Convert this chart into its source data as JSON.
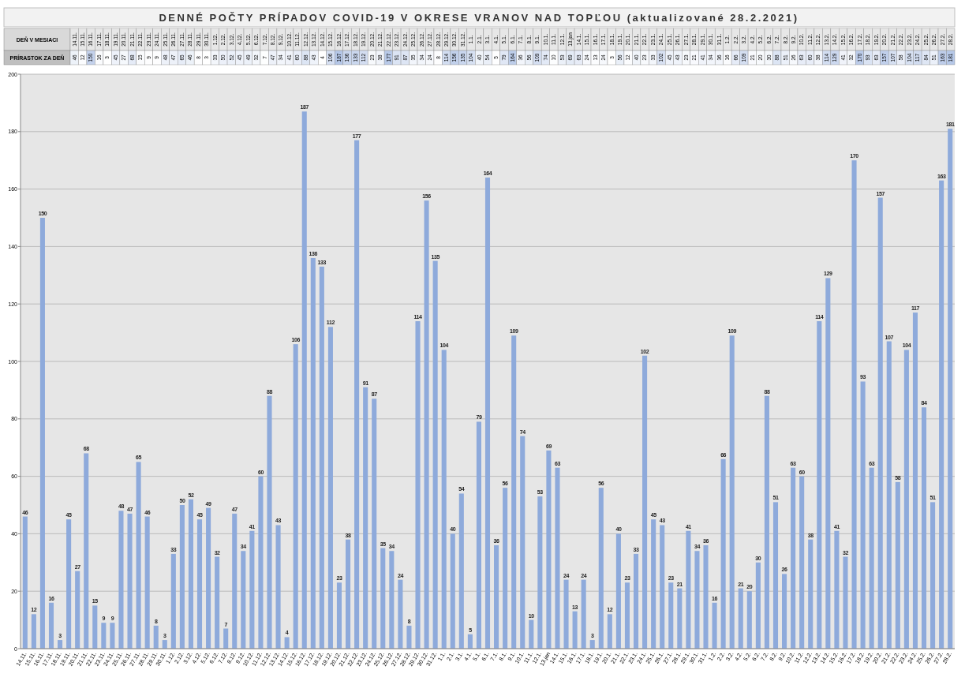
{
  "chart_data": [
    {
      "type": "heatmap",
      "title": "DENNÉ POČTY PRÍPADOV COVID-19 V OKRESE VRANOV NAD TOPĽOU (aktualizované 28.2.2021)",
      "xlabel": "DEŇ V MESIACI",
      "categories": [
        "14.11.",
        "15.11.",
        "16.11.",
        "17.11.",
        "18.11.",
        "19.11.",
        "20.11.",
        "21.11.",
        "22.11.",
        "23.11.",
        "24.11.",
        "25.11.",
        "26.11.",
        "27.11.",
        "28.11.",
        "29.11.",
        "30.11.",
        "1.12.",
        "2.12.",
        "3.12.",
        "4.12.",
        "5.12.",
        "6.12.",
        "7.12.",
        "8.12.",
        "9.12.",
        "10.12.",
        "11.12.",
        "12.12.",
        "13.12.",
        "14.12.",
        "15.12.",
        "16.12.",
        "17.12.",
        "18.12.",
        "19.12.",
        "20.12.",
        "21.12.",
        "22.12.",
        "23.12.",
        "24.12.",
        "25.12.",
        "26.12.",
        "27.12.",
        "28.12.",
        "29.12.",
        "30.12.",
        "31.12.",
        "1.1.",
        "2.1.",
        "3.1.",
        "4.1.",
        "5.1.",
        "6.1.",
        "7.1.",
        "8.1.",
        "9.1.",
        "10.1.",
        "11.1.",
        "12.1.",
        "13.jan",
        "14.1.",
        "15.1.",
        "16.1.",
        "17.1.",
        "18.1.",
        "19.1.",
        "20.1.",
        "21.1.",
        "22.1.",
        "23.1.",
        "24.1.",
        "25.1.",
        "26.1.",
        "27.1.",
        "28.1.",
        "29.1.",
        "30.1.",
        "31.1.",
        "1.2.",
        "2.2.",
        "3.2.",
        "4.2.",
        "5.2.",
        "6.2.",
        "7.2.",
        "8.2.",
        "9.2.",
        "10.2.",
        "11.2.",
        "12.2.",
        "13.2.",
        "14.2.",
        "15.2.",
        "16.2.",
        "17.2.",
        "18.2.",
        "19.2.",
        "20.2.",
        "21.2.",
        "22.2.",
        "23.2.",
        "24.2.",
        "25.2.",
        "26.2.",
        "27.2.",
        "28.2."
      ],
      "y_categories": [
        "PRÍRASTOK ZA DEŇ"
      ],
      "cells": [
        [
          46,
          12,
          150,
          16,
          3,
          45,
          27,
          68,
          15,
          9,
          9,
          48,
          47,
          65,
          46,
          8,
          3,
          33,
          50,
          52,
          45,
          49,
          32,
          7,
          47,
          34,
          41,
          60,
          88,
          43,
          4,
          106,
          187,
          136,
          133,
          112,
          23,
          38,
          177,
          91,
          87,
          35,
          34,
          24,
          8,
          114,
          156,
          135,
          104,
          40,
          54,
          5,
          79,
          164,
          36,
          56,
          109,
          74,
          10,
          53,
          69,
          63,
          24,
          13,
          24,
          3,
          56,
          12,
          40,
          23,
          33,
          102,
          45,
          43,
          23,
          21,
          41,
          34,
          36,
          16,
          66,
          109,
          21,
          20,
          30,
          88,
          51,
          26,
          63,
          60,
          38,
          114,
          129,
          41,
          32,
          170,
          93,
          63,
          157,
          107,
          58,
          104,
          117,
          84,
          51,
          163,
          181
        ]
      ],
      "data_labels": true
    },
    {
      "type": "bar",
      "categories": [
        "14.11.",
        "15.11.",
        "16.11.",
        "17.11.",
        "18.11.",
        "19.11.",
        "20.11.",
        "21.11.",
        "22.11.",
        "23.11.",
        "24.11.",
        "25.11.",
        "26.11.",
        "27.11.",
        "28.11.",
        "29.11.",
        "30.11.",
        "1.12.",
        "2.12.",
        "3.12.",
        "4.12.",
        "5.12.",
        "6.12.",
        "7.12.",
        "8.12.",
        "9.12.",
        "10.12.",
        "11.12.",
        "12.12.",
        "13.12.",
        "14.12.",
        "15.12.",
        "16.12.",
        "17.12.",
        "18.12.",
        "19.12.",
        "20.12.",
        "21.12.",
        "22.12.",
        "23.12.",
        "24.12.",
        "25.12.",
        "26.12.",
        "27.12.",
        "28.12.",
        "29.12.",
        "30.12.",
        "31.12.",
        "1.1.",
        "2.1.",
        "3.1.",
        "4.1.",
        "5.1.",
        "6.1.",
        "7.1.",
        "8.1.",
        "9.1.",
        "10.1.",
        "11.1.",
        "12.1.",
        "13.jan",
        "14.1.",
        "15.1.",
        "16.1.",
        "17.1.",
        "18.1.",
        "19.1.",
        "20.1.",
        "21.1.",
        "22.1.",
        "23.1.",
        "24.1.",
        "25.1.",
        "26.1.",
        "27.1.",
        "28.1.",
        "29.1.",
        "30.1.",
        "31.1.",
        "1.2.",
        "2.2.",
        "3.2.",
        "4.2.",
        "5.2.",
        "6.2.",
        "7.2.",
        "8.2.",
        "9.2.",
        "10.2.",
        "11.2.",
        "12.2.",
        "13.2.",
        "14.2.",
        "15.2.",
        "16.2.",
        "17.2.",
        "18.2.",
        "19.2.",
        "20.2.",
        "21.2.",
        "22.2.",
        "23.2.",
        "24.2.",
        "25.2.",
        "26.2.",
        "27.2.",
        "28.2."
      ],
      "values": [
        46,
        12,
        150,
        16,
        3,
        45,
        27,
        68,
        15,
        9,
        9,
        48,
        47,
        65,
        46,
        8,
        3,
        33,
        50,
        52,
        45,
        49,
        32,
        7,
        47,
        34,
        41,
        60,
        88,
        43,
        4,
        106,
        187,
        136,
        133,
        112,
        23,
        38,
        177,
        91,
        87,
        35,
        34,
        24,
        8,
        114,
        156,
        135,
        104,
        40,
        54,
        5,
        79,
        164,
        36,
        56,
        109,
        74,
        10,
        53,
        69,
        63,
        24,
        13,
        24,
        3,
        56,
        12,
        40,
        23,
        33,
        102,
        45,
        43,
        23,
        21,
        41,
        34,
        36,
        16,
        66,
        109,
        21,
        20,
        30,
        88,
        51,
        26,
        63,
        60,
        38,
        114,
        129,
        41,
        32,
        170,
        93,
        63,
        157,
        107,
        58,
        104,
        117,
        84,
        51,
        163,
        181
      ],
      "color": "#8eaadb",
      "ylim": [
        0,
        200
      ],
      "yticks": [
        0,
        20,
        40,
        60,
        80,
        100,
        120,
        140,
        160,
        180,
        200
      ],
      "grid": "y",
      "data_labels": true
    }
  ]
}
